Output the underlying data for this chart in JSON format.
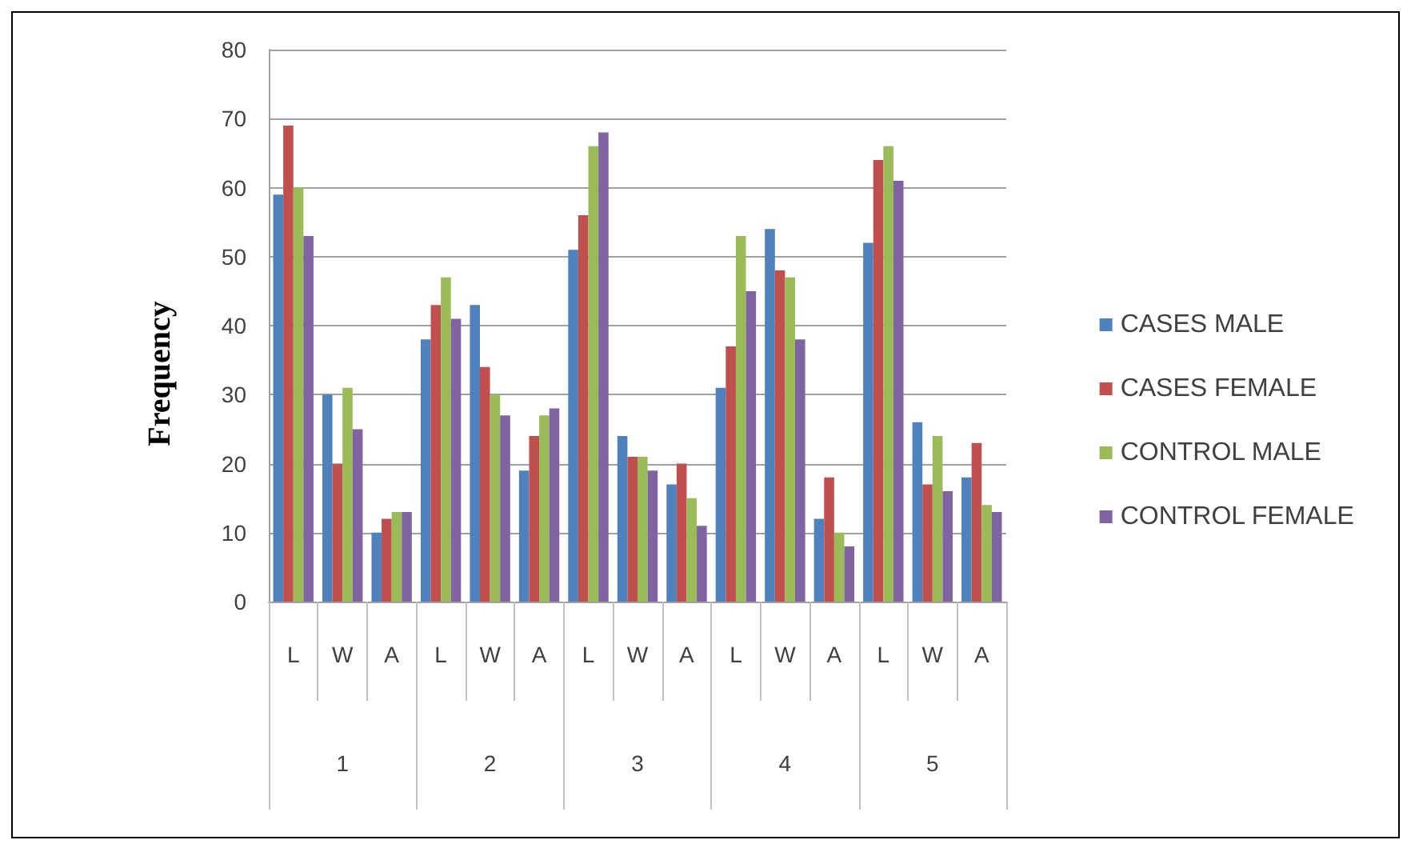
{
  "chart_data": {
    "type": "bar",
    "ylabel": "Frequency",
    "categories": [
      "L",
      "W",
      "A",
      "L",
      "W",
      "A",
      "L",
      "W",
      "A",
      "L",
      "W",
      "A",
      "L",
      "W",
      "A"
    ],
    "annotations": [
      "1",
      "2",
      "3",
      "4",
      "5"
    ],
    "series": [
      {
        "name": "CASES MALE",
        "color": "#4f81bd",
        "values": [
          59,
          30,
          10,
          38,
          43,
          19,
          51,
          24,
          17,
          31,
          54,
          12,
          52,
          26,
          18
        ]
      },
      {
        "name": "CASES FEMALE",
        "color": "#c0504d",
        "values": [
          69,
          20,
          12,
          43,
          34,
          24,
          56,
          21,
          20,
          37,
          48,
          18,
          64,
          17,
          23
        ]
      },
      {
        "name": "CONTROL MALE",
        "color": "#9bbb59",
        "values": [
          60,
          31,
          13,
          47,
          30,
          27,
          66,
          21,
          15,
          53,
          47,
          10,
          66,
          24,
          14
        ]
      },
      {
        "name": "CONTROL FEMALE",
        "color": "#8064a2",
        "values": [
          53,
          25,
          13,
          41,
          27,
          28,
          68,
          19,
          11,
          45,
          38,
          8,
          61,
          16,
          13
        ]
      }
    ],
    "ylim": [
      0,
      80
    ],
    "yticks": [
      0,
      10,
      20,
      30,
      40,
      50,
      60,
      70,
      80
    ],
    "grid": "y",
    "legend": "right"
  }
}
